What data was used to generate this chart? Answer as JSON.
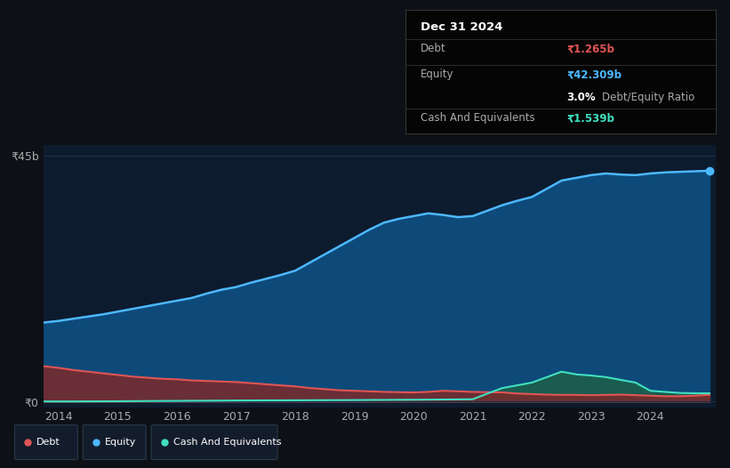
{
  "background_color": "#0d1117",
  "plot_bg_color": "#0d1b2e",
  "grid_color": "#1e3050",
  "tooltip_title": "Dec 31 2024",
  "tooltip_debt": "₹1.265b",
  "tooltip_equity": "₹42.309b",
  "tooltip_ratio": "3.0%",
  "tooltip_cash": "₹1.539b",
  "ylabel_top": "₹45b",
  "ylabel_zero": "₹0",
  "years": [
    2013.75,
    2014.0,
    2014.25,
    2014.5,
    2014.75,
    2015.0,
    2015.25,
    2015.5,
    2015.75,
    2016.0,
    2016.25,
    2016.5,
    2016.75,
    2017.0,
    2017.25,
    2017.5,
    2017.75,
    2018.0,
    2018.25,
    2018.5,
    2018.75,
    2019.0,
    2019.25,
    2019.5,
    2019.75,
    2020.0,
    2020.25,
    2020.5,
    2020.75,
    2021.0,
    2021.25,
    2021.5,
    2021.75,
    2022.0,
    2022.25,
    2022.5,
    2022.75,
    2023.0,
    2023.25,
    2023.5,
    2023.75,
    2024.0,
    2024.25,
    2024.5,
    2024.75,
    2025.0
  ],
  "equity": [
    14.5,
    14.8,
    15.2,
    15.6,
    16.0,
    16.5,
    17.0,
    17.5,
    18.0,
    18.5,
    19.0,
    19.8,
    20.5,
    21.0,
    21.8,
    22.5,
    23.2,
    24.0,
    25.5,
    27.0,
    28.5,
    30.0,
    31.5,
    32.8,
    33.5,
    34.0,
    34.5,
    34.2,
    33.8,
    34.0,
    35.0,
    36.0,
    36.8,
    37.5,
    39.0,
    40.5,
    41.0,
    41.5,
    41.8,
    41.6,
    41.5,
    41.8,
    42.0,
    42.1,
    42.2,
    42.309
  ],
  "debt": [
    6.5,
    6.2,
    5.8,
    5.5,
    5.2,
    4.9,
    4.6,
    4.4,
    4.2,
    4.1,
    3.9,
    3.8,
    3.7,
    3.6,
    3.4,
    3.2,
    3.0,
    2.8,
    2.5,
    2.3,
    2.1,
    2.0,
    1.9,
    1.8,
    1.75,
    1.7,
    1.8,
    2.0,
    1.9,
    1.8,
    1.75,
    1.7,
    1.5,
    1.4,
    1.3,
    1.25,
    1.25,
    1.2,
    1.25,
    1.3,
    1.2,
    1.1,
    1.0,
    1.0,
    1.1,
    1.265
  ],
  "cash": [
    0.05,
    0.05,
    0.05,
    0.06,
    0.07,
    0.08,
    0.1,
    0.12,
    0.14,
    0.15,
    0.17,
    0.18,
    0.2,
    0.22,
    0.23,
    0.24,
    0.25,
    0.26,
    0.27,
    0.28,
    0.29,
    0.3,
    0.32,
    0.33,
    0.35,
    0.36,
    0.38,
    0.4,
    0.42,
    0.45,
    1.5,
    2.5,
    3.0,
    3.5,
    4.5,
    5.5,
    5.0,
    4.8,
    4.5,
    4.0,
    3.5,
    2.0,
    1.8,
    1.6,
    1.55,
    1.539
  ],
  "xtick_labels": [
    "2014",
    "2015",
    "2016",
    "2017",
    "2018",
    "2019",
    "2020",
    "2021",
    "2022",
    "2023",
    "2024"
  ],
  "xtick_positions": [
    2014,
    2015,
    2016,
    2017,
    2018,
    2019,
    2020,
    2021,
    2022,
    2023,
    2024
  ],
  "debt_color": "#e05555",
  "equity_color": "#4db8ff",
  "cash_color": "#40e0c0",
  "debt_fill": "#7b2a2a",
  "equity_fill": "#0d4a7a",
  "cash_fill": "#1a5c50",
  "legend_bg": "#131c2b",
  "legend_border": "#2a3a4a",
  "dot_color": "#4db8ff",
  "figsize": [
    8.21,
    5.26
  ],
  "dpi": 100
}
